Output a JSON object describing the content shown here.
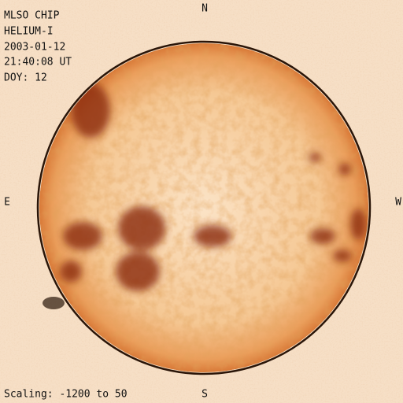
{
  "header": {
    "lines": [
      "MLSO CHIP",
      "HELIUM-I",
      "2003-01-12",
      "21:40:08 UT",
      "DOY: 12"
    ]
  },
  "compass": {
    "north": "N",
    "east": "E",
    "west": "W",
    "south": "S"
  },
  "footer": {
    "scaling": "Scaling: -1200 to 50"
  }
}
